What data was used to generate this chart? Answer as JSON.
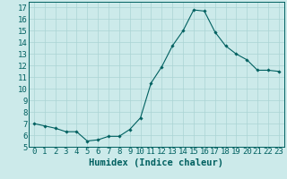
{
  "x": [
    0,
    1,
    2,
    3,
    4,
    5,
    6,
    7,
    8,
    9,
    10,
    11,
    12,
    13,
    14,
    15,
    16,
    17,
    18,
    19,
    20,
    21,
    22,
    23
  ],
  "y": [
    7.0,
    6.8,
    6.6,
    6.3,
    6.3,
    5.5,
    5.6,
    5.9,
    5.9,
    6.5,
    7.5,
    10.5,
    11.9,
    13.7,
    15.0,
    16.8,
    16.7,
    14.9,
    13.7,
    13.0,
    12.5,
    11.6,
    11.6,
    11.5
  ],
  "line_color": "#006060",
  "marker": "D",
  "marker_size": 1.8,
  "bg_color": "#cceaea",
  "grid_color": "#aad4d4",
  "xlabel": "Humidex (Indice chaleur)",
  "xlim": [
    -0.5,
    23.5
  ],
  "ylim": [
    5,
    17.5
  ],
  "yticks": [
    5,
    6,
    7,
    8,
    9,
    10,
    11,
    12,
    13,
    14,
    15,
    16,
    17
  ],
  "xticks": [
    0,
    1,
    2,
    3,
    4,
    5,
    6,
    7,
    8,
    9,
    10,
    11,
    12,
    13,
    14,
    15,
    16,
    17,
    18,
    19,
    20,
    21,
    22,
    23
  ],
  "tick_color": "#006060",
  "label_color": "#006060",
  "axis_color": "#006060",
  "font_size": 6.5,
  "xlabel_fontsize": 7.5
}
